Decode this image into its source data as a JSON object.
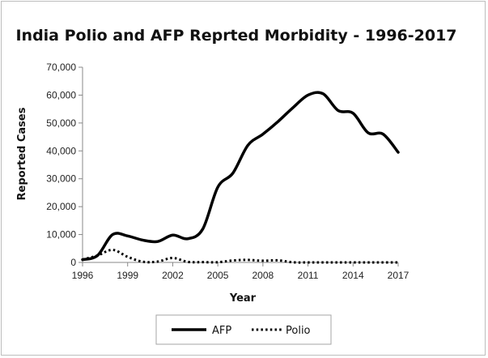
{
  "chart_data": {
    "type": "line",
    "title": "India Polio and AFP Reprted Morbidity - 1996-2017",
    "xlabel": "Year",
    "ylabel": "Reported Cases",
    "xlim": [
      1996,
      2017
    ],
    "ylim": [
      0,
      70000
    ],
    "x_ticks": [
      1996,
      1999,
      2002,
      2005,
      2008,
      2011,
      2014,
      2017
    ],
    "y_ticks": [
      0,
      10000,
      20000,
      30000,
      40000,
      50000,
      60000,
      70000
    ],
    "y_tick_labels": [
      "0",
      "10,000",
      "20,000",
      "30,000",
      "40,000",
      "50,000",
      "60,000",
      "70,000"
    ],
    "grid": false,
    "legend_position": "bottom",
    "series": [
      {
        "name": "AFP",
        "style": "solid",
        "color": "#000000",
        "x": [
          1996,
          1997,
          1998,
          1999,
          2000,
          2001,
          2002,
          2003,
          2004,
          2005,
          2006,
          2007,
          2008,
          2009,
          2010,
          2011,
          2012,
          2013,
          2014,
          2015,
          2016,
          2017
        ],
        "values": [
          1000,
          2500,
          10000,
          9500,
          8000,
          7500,
          9800,
          8500,
          12000,
          27000,
          32000,
          42000,
          46000,
          50500,
          55500,
          60000,
          60500,
          54500,
          53500,
          46500,
          46000,
          39500
        ]
      },
      {
        "name": "Polio",
        "style": "dotted",
        "color": "#000000",
        "x": [
          1996,
          1997,
          1998,
          1999,
          2000,
          2001,
          2002,
          2003,
          2004,
          2005,
          2006,
          2007,
          2008,
          2009,
          2010,
          2011,
          2012,
          2013,
          2014,
          2015,
          2016,
          2017
        ],
        "values": [
          1000,
          2500,
          4500,
          2000,
          250,
          300,
          1600,
          200,
          100,
          70,
          700,
          900,
          600,
          750,
          40,
          1,
          0,
          0,
          0,
          0,
          0,
          0
        ]
      }
    ]
  }
}
